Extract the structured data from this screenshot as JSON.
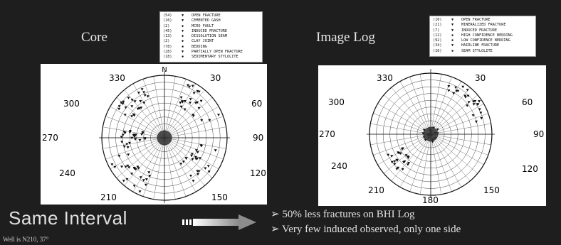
{
  "core": {
    "title": "Core",
    "legend": [
      {
        "count": "(54)",
        "mark": "▼",
        "label": "OPEN FRACTURE"
      },
      {
        "count": "(16)",
        "mark": "▼",
        "label": "CEMENTED GASH"
      },
      {
        "count": "(2)",
        "mark": "◆",
        "label": "MCRO FAULT"
      },
      {
        "count": "(45)",
        "mark": "▼",
        "label": "INDUCED FRACTURE"
      },
      {
        "count": "(13)",
        "mark": "◆",
        "label": "DISSOLUTION SEAM"
      },
      {
        "count": "(2)",
        "mark": "◆",
        "label": "CLAY JOINT"
      },
      {
        "count": "(78)",
        "mark": "✱",
        "label": "BEDDING"
      },
      {
        "count": "(28)",
        "mark": "▼",
        "label": "PARTIALLY OPEN FRACTURE"
      },
      {
        "count": "(18)",
        "mark": "✱",
        "label": "SEDIMENTARY STYLOLITE"
      }
    ],
    "stereonet": {
      "north": "N",
      "labels": [
        "330",
        "30",
        "300",
        "60",
        "270",
        "90",
        "240",
        "120",
        "210",
        "150"
      ]
    }
  },
  "image_log": {
    "title": "Image Log",
    "legend": [
      {
        "count": "(10)",
        "mark": "▼",
        "label": "OPEN FRACTURE"
      },
      {
        "count": "(21)",
        "mark": "▼",
        "label": "MINERALIZED FRACTURE"
      },
      {
        "count": "(7)",
        "mark": "▼",
        "label": "INDUCED FRACTURE"
      },
      {
        "count": "(12)",
        "mark": "✱",
        "label": "HIGH CONFIDENCE BEDDING"
      },
      {
        "count": "(92)",
        "mark": "✱",
        "label": "LOW CONFIDENCE BEDDING"
      },
      {
        "count": "(34)",
        "mark": "▼",
        "label": "HAIRLINE FRACTURE"
      },
      {
        "count": "(10)",
        "mark": "✱",
        "label": "SEAM STYLOLITE"
      }
    ],
    "stereonet": {
      "labels": [
        "330",
        "30",
        "300",
        "60",
        "270",
        "90",
        "240",
        "120",
        "210",
        "180",
        "150"
      ]
    }
  },
  "heading": "Same Interval",
  "bullets": [
    "➢ 50% less fractures on BHI Log",
    "➢ Very few induced observed, only one side"
  ],
  "footnote": "Well is N210, 37°"
}
